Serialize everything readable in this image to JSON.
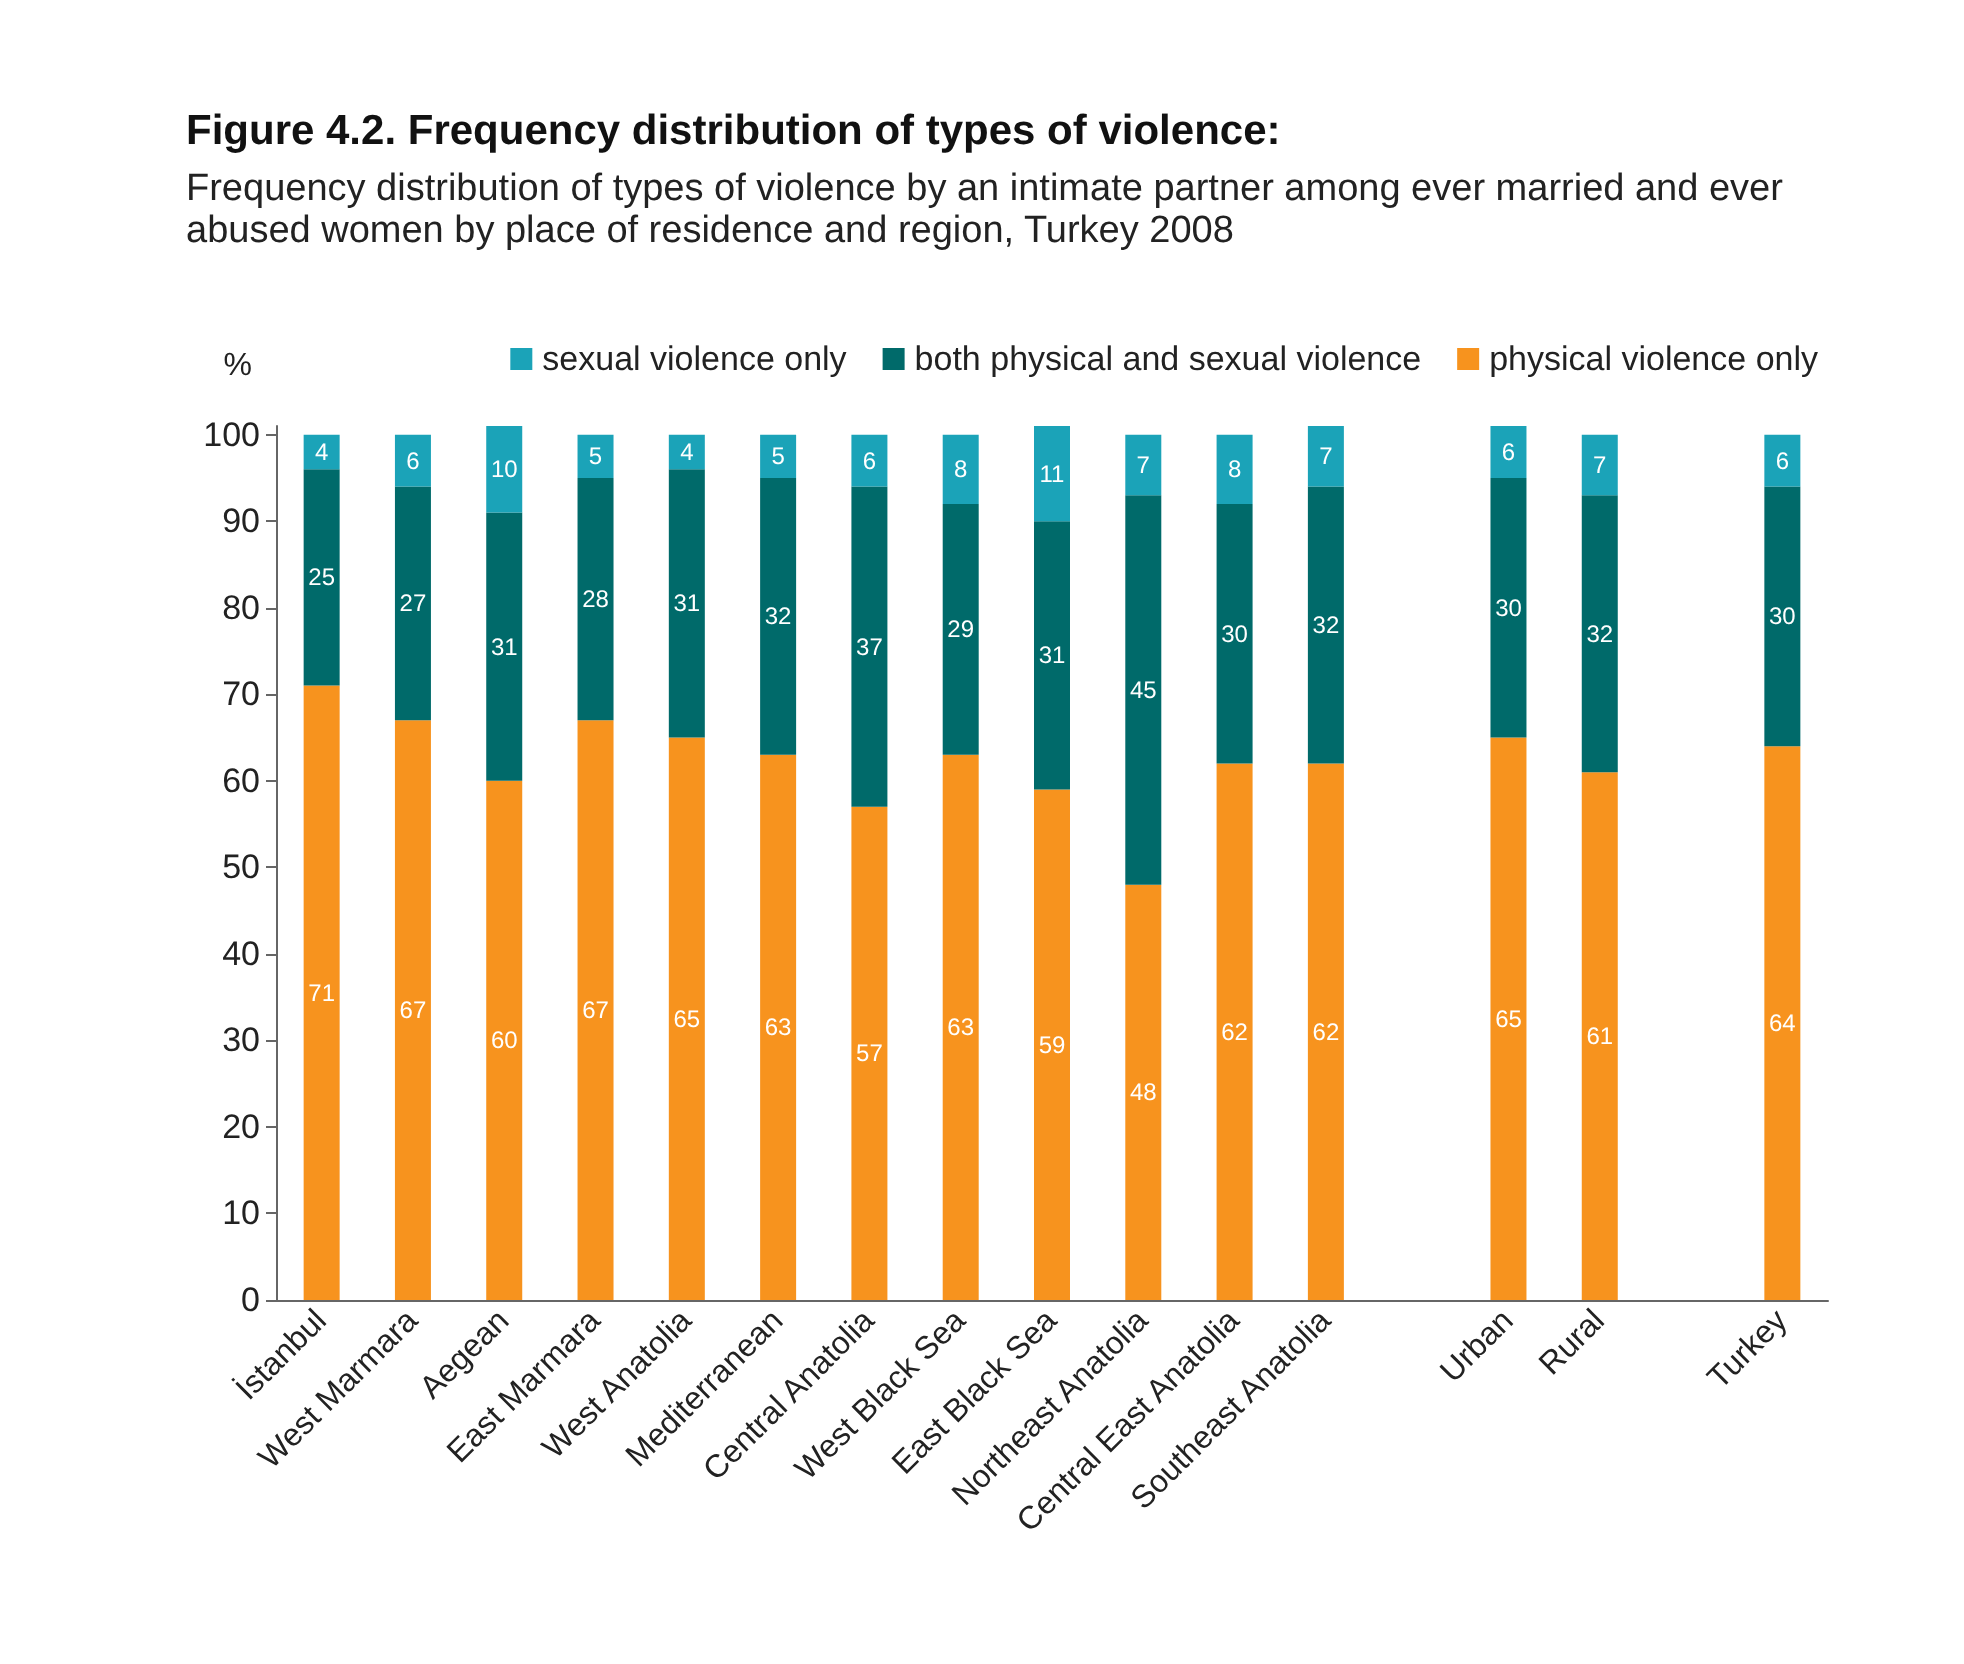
{
  "chart_data": {
    "type": "bar",
    "stacked": true,
    "title": "Figure 4.2. Frequency distribution of types of violence:",
    "subtitle": "Frequency distribution of types of violence by an intimate partner among ever married and ever abused women by place of residence and region, Turkey 2008",
    "ylabel": "%",
    "categories": [
      "İstanbul",
      "West Marmara",
      "Aegean",
      "East Marmara",
      "West Anatolia",
      "Mediterranean",
      "Central Anatolia",
      "West Black Sea",
      "East Black Sea",
      "Northeast Anatolia",
      "Central East Anatolia",
      "Southeast Anatolia",
      null,
      "Urban",
      "Rural",
      null,
      "Turkey"
    ],
    "series": [
      {
        "name": "physical violence only",
        "color": "#f7931e",
        "values": [
          71,
          67,
          60,
          67,
          65,
          63,
          57,
          63,
          59,
          48,
          62,
          62,
          null,
          65,
          61,
          null,
          64
        ]
      },
      {
        "name": "both physical and sexual violence",
        "color": "#006a6a",
        "values": [
          25,
          27,
          31,
          28,
          31,
          32,
          37,
          29,
          31,
          45,
          30,
          32,
          null,
          30,
          32,
          null,
          30
        ]
      },
      {
        "name": "sexual violence only",
        "color": "#1ba3b8",
        "values": [
          4,
          6,
          10,
          5,
          4,
          5,
          6,
          8,
          11,
          7,
          8,
          7,
          null,
          6,
          7,
          null,
          6
        ]
      }
    ],
    "ylim": [
      0,
      101
    ],
    "yticks": [
      0,
      10,
      20,
      30,
      40,
      50,
      60,
      70,
      80,
      90,
      100
    ],
    "grid": false,
    "legend": "top",
    "data_labels": true
  }
}
